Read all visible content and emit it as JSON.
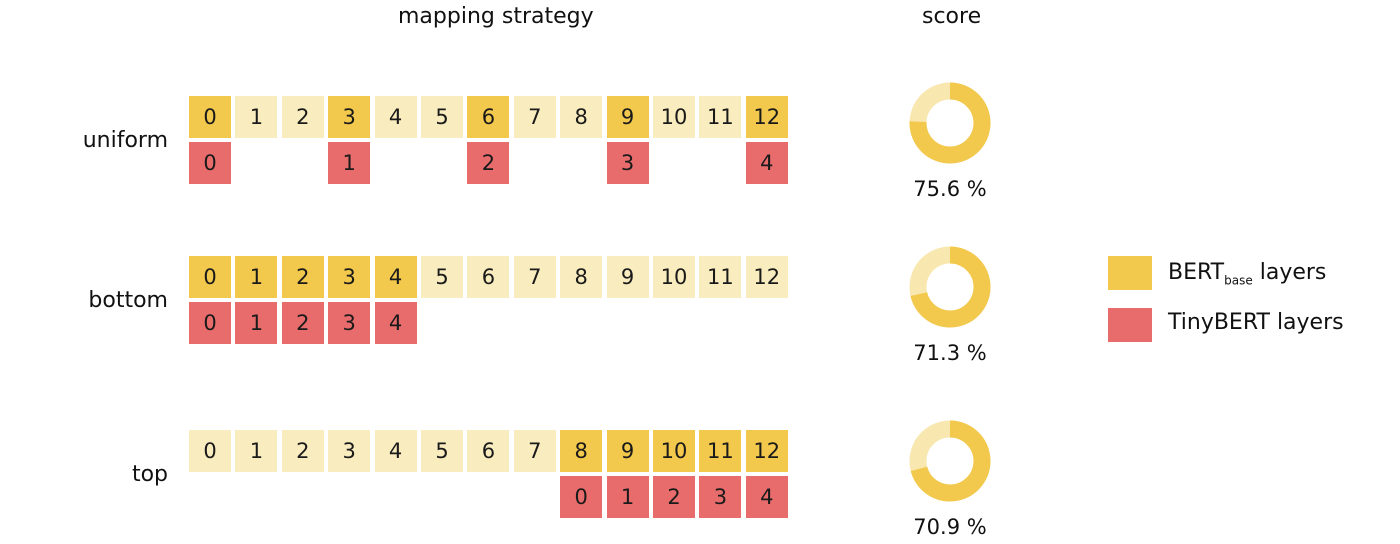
{
  "headers": {
    "mapping": "mapping strategy",
    "score": "score"
  },
  "rows": [
    {
      "label": "uniform",
      "teacher": [
        "0",
        "1",
        "2",
        "3",
        "4",
        "5",
        "6",
        "7",
        "8",
        "9",
        "10",
        "11",
        "12"
      ],
      "active_positions": [
        0,
        3,
        6,
        9,
        12
      ],
      "student": [
        "0",
        "1",
        "2",
        "3",
        "4"
      ],
      "student_positions": [
        0,
        3,
        6,
        9,
        12
      ],
      "score": 75.6,
      "score_text": "75.6 %"
    },
    {
      "label": "bottom",
      "teacher": [
        "0",
        "1",
        "2",
        "3",
        "4",
        "5",
        "6",
        "7",
        "8",
        "9",
        "10",
        "11",
        "12"
      ],
      "active_positions": [
        0,
        1,
        2,
        3,
        4
      ],
      "student": [
        "0",
        "1",
        "2",
        "3",
        "4"
      ],
      "student_positions": [
        0,
        1,
        2,
        3,
        4
      ],
      "score": 71.3,
      "score_text": "71.3 %"
    },
    {
      "label": "top",
      "teacher": [
        "0",
        "1",
        "2",
        "3",
        "4",
        "5",
        "6",
        "7",
        "8",
        "9",
        "10",
        "11",
        "12"
      ],
      "active_positions": [
        8,
        9,
        10,
        11,
        12
      ],
      "student": [
        "0",
        "1",
        "2",
        "3",
        "4"
      ],
      "student_positions": [
        8,
        9,
        10,
        11,
        12
      ],
      "score": 70.9,
      "score_text": "70.9 %"
    }
  ],
  "legend": {
    "teacher": {
      "main": "BERT",
      "sub": "base",
      "suffix": " layers"
    },
    "student": {
      "label": "TinyBERT layers"
    }
  },
  "colors": {
    "teacher_active": "#f2c94c",
    "teacher_inactive": "#f9ecbe",
    "student": "#e86c6c",
    "donut_fill": "#f2c94c",
    "donut_track": "#f9e7b0"
  }
}
